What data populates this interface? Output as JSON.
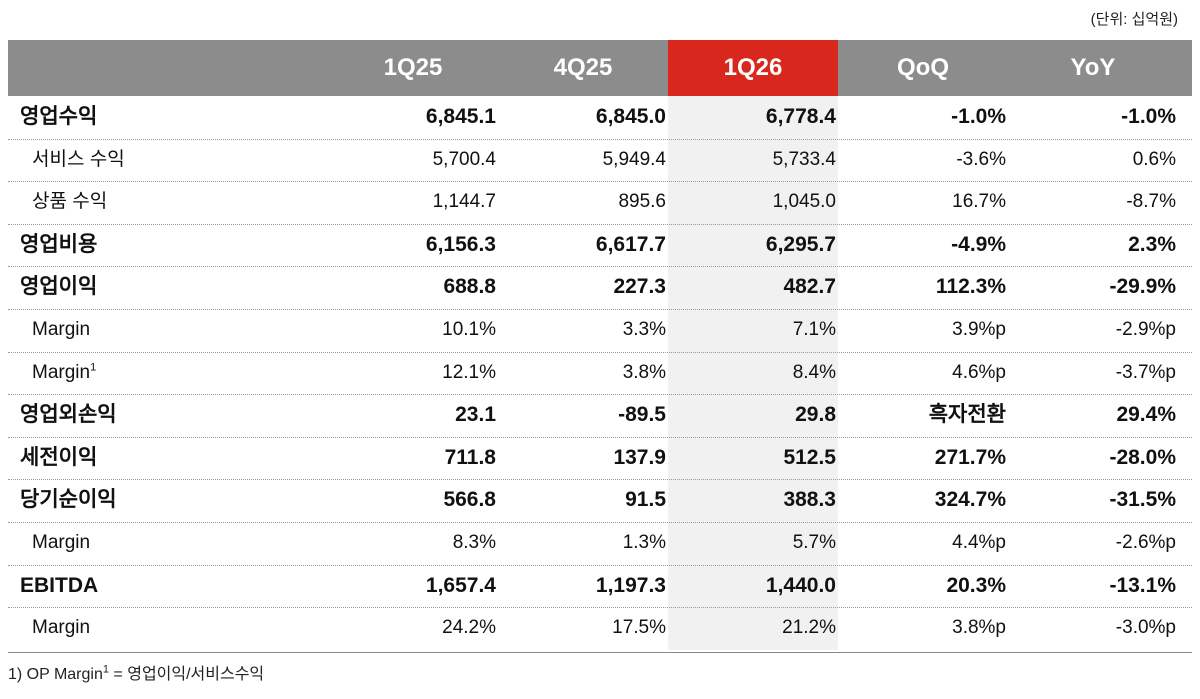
{
  "unit": "(단위: 십억원)",
  "table": {
    "columns": [
      "1Q25",
      "4Q25",
      "1Q26",
      "QoQ",
      "YoY"
    ],
    "highlight_column": 2,
    "rows": [
      {
        "label": "영업수익",
        "bold": true,
        "values": [
          "6,845.1",
          "6,845.0",
          "6,778.4",
          "-1.0%",
          "-1.0%"
        ]
      },
      {
        "label": "서비스 수익",
        "bold": false,
        "values": [
          "5,700.4",
          "5,949.4",
          "5,733.4",
          "-3.6%",
          "0.6%"
        ]
      },
      {
        "label": "상품 수익",
        "bold": false,
        "values": [
          "1,144.7",
          "895.6",
          "1,045.0",
          "16.7%",
          "-8.7%"
        ]
      },
      {
        "label": "영업비용",
        "bold": true,
        "values": [
          "6,156.3",
          "6,617.7",
          "6,295.7",
          "-4.9%",
          "2.3%"
        ]
      },
      {
        "label": "영업이익",
        "bold": true,
        "values": [
          "688.8",
          "227.3",
          "482.7",
          "112.3%",
          "-29.9%"
        ]
      },
      {
        "label": "Margin",
        "bold": false,
        "values": [
          "10.1%",
          "3.3%",
          "7.1%",
          "3.9%p",
          "-2.9%p"
        ]
      },
      {
        "label": "Margin",
        "sup": "1",
        "bold": false,
        "values": [
          "12.1%",
          "3.8%",
          "8.4%",
          "4.6%p",
          "-3.7%p"
        ]
      },
      {
        "label": "영업외손익",
        "bold": true,
        "values": [
          "23.1",
          "-89.5",
          "29.8",
          "흑자전환",
          "29.4%"
        ]
      },
      {
        "label": "세전이익",
        "bold": true,
        "values": [
          "711.8",
          "137.9",
          "512.5",
          "271.7%",
          "-28.0%"
        ]
      },
      {
        "label": "당기순이익",
        "bold": true,
        "values": [
          "566.8",
          "91.5",
          "388.3",
          "324.7%",
          "-31.5%"
        ]
      },
      {
        "label": "Margin",
        "bold": false,
        "values": [
          "8.3%",
          "1.3%",
          "5.7%",
          "4.4%p",
          "-2.6%p"
        ]
      },
      {
        "label": "EBITDA",
        "bold": true,
        "values": [
          "1,657.4",
          "1,197.3",
          "1,440.0",
          "20.3%",
          "-13.1%"
        ]
      },
      {
        "label": "Margin",
        "bold": false,
        "values": [
          "24.2%",
          "17.5%",
          "21.2%",
          "3.8%p",
          "-3.0%p"
        ]
      }
    ]
  },
  "footnote": {
    "before": "1) OP Margin",
    "sup": "1",
    "after": " = 영업이익/서비스수익"
  }
}
